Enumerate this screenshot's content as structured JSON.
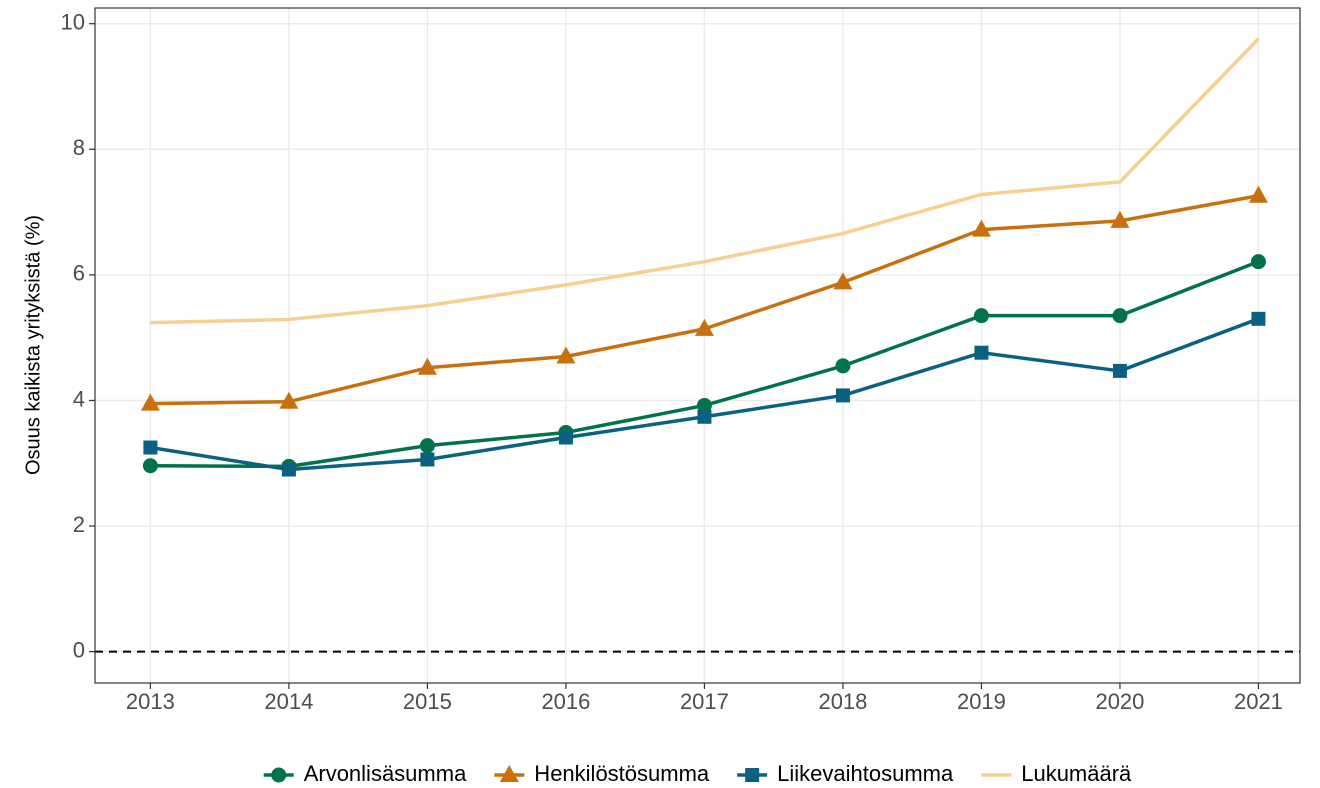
{
  "chart_data": {
    "type": "line",
    "y_label": "Osuus kaikista yrityksistä (%)",
    "x": [
      2013,
      2014,
      2015,
      2016,
      2017,
      2018,
      2019,
      2020,
      2021
    ],
    "series": [
      {
        "name": "Arvonlisäsumma",
        "color": "#00734a",
        "marker": "circle",
        "values": [
          2.96,
          2.95,
          3.28,
          3.49,
          3.92,
          4.55,
          5.35,
          5.35,
          6.21
        ]
      },
      {
        "name": "Henkilöstösumma",
        "color": "#c8700e",
        "marker": "triangle",
        "values": [
          3.95,
          3.98,
          4.52,
          4.7,
          5.14,
          5.88,
          6.72,
          6.86,
          7.26
        ]
      },
      {
        "name": "Liikevaihtosumma",
        "color": "#0a6182",
        "marker": "square",
        "values": [
          3.25,
          2.9,
          3.06,
          3.41,
          3.74,
          4.08,
          4.76,
          4.47,
          5.3
        ]
      },
      {
        "name": "Lukumäärä",
        "color": "#f5d08e",
        "marker": "none",
        "values": [
          5.24,
          5.29,
          5.51,
          5.84,
          6.21,
          6.66,
          7.28,
          7.48,
          9.76
        ]
      }
    ],
    "xlim": [
      2012.6,
      2021.3
    ],
    "xticks": [
      2013,
      2014,
      2015,
      2016,
      2017,
      2018,
      2019,
      2020,
      2021
    ],
    "ylim": [
      -0.5,
      10.25
    ],
    "yticks": [
      0,
      2,
      4,
      6,
      8,
      10
    ],
    "hline": 0,
    "grid": true,
    "legend": "bottom"
  }
}
